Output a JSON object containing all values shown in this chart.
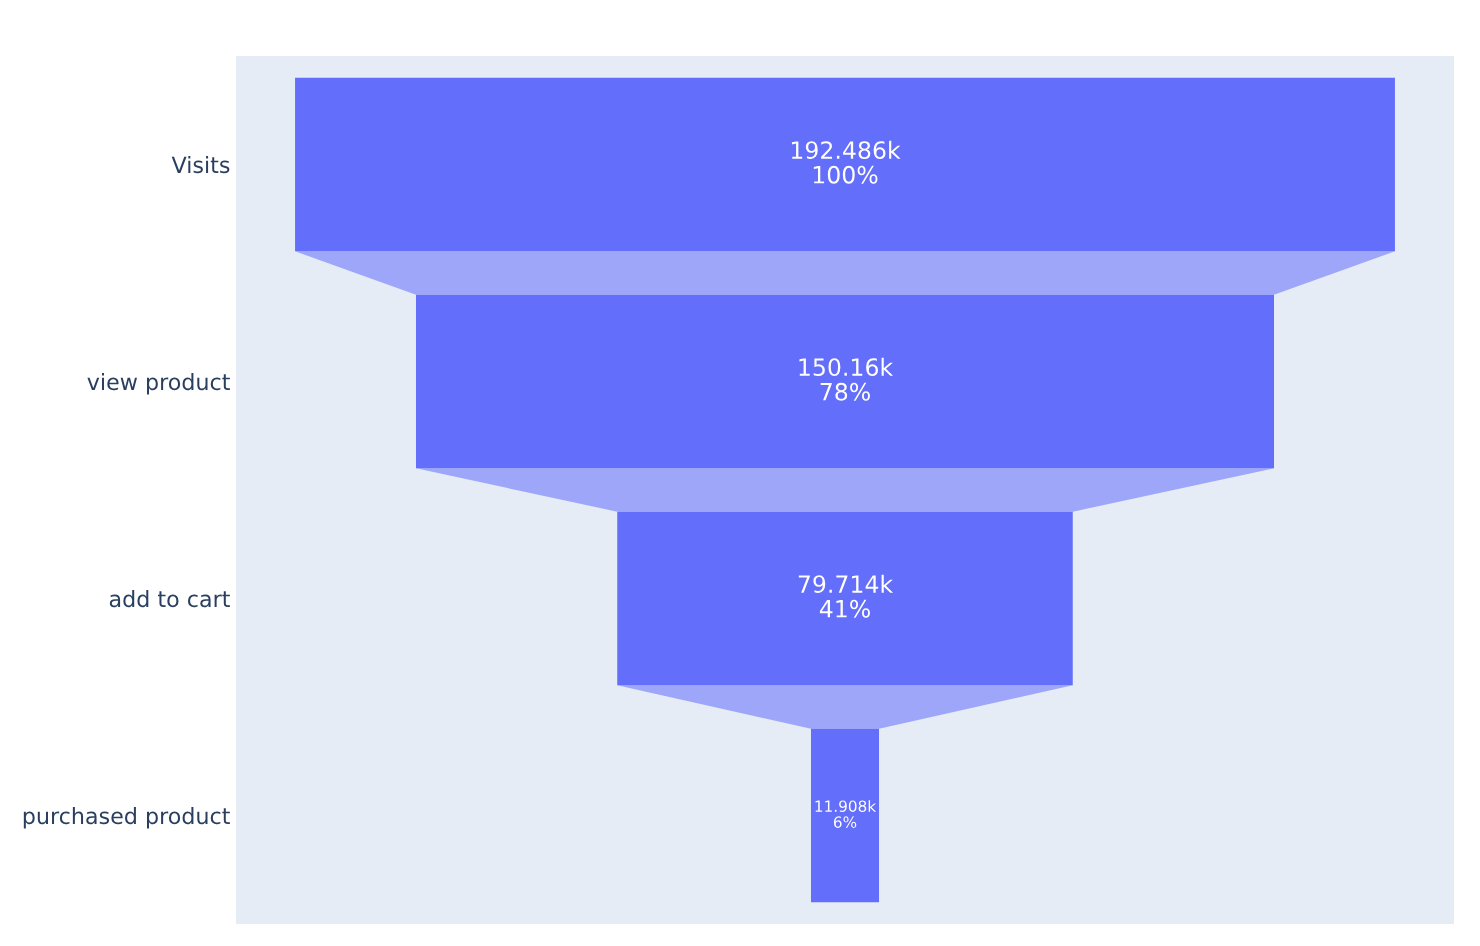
{
  "chart_data": {
    "type": "other",
    "categories": [
      "Visits",
      "view product",
      "add to cart",
      "purchased product"
    ],
    "values": [
      192486,
      150160,
      79714,
      11908
    ],
    "value_labels": [
      "192.486k\n100%",
      "150.16k\n78%",
      "79.714k\n41%",
      "11.908k\n6%"
    ],
    "colors": [
      "#636efa",
      "#636efa",
      "#636efa",
      "#636efa"
    ]
  }
}
